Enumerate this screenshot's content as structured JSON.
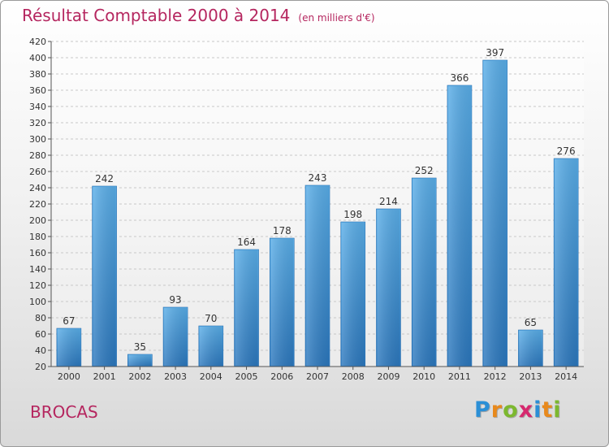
{
  "chart_data": {
    "type": "bar",
    "title": "Résultat Comptable 2000 à 2014",
    "subtitle": "(en milliers d'€)",
    "categories": [
      "2000",
      "2001",
      "2002",
      "2003",
      "2004",
      "2005",
      "2006",
      "2007",
      "2008",
      "2009",
      "2010",
      "2011",
      "2012",
      "2013",
      "2014"
    ],
    "values": [
      67,
      242,
      35,
      93,
      70,
      164,
      178,
      243,
      198,
      214,
      252,
      366,
      397,
      65,
      276
    ],
    "ylim": [
      20,
      420
    ],
    "yticks": [
      20,
      40,
      60,
      80,
      100,
      120,
      140,
      160,
      180,
      200,
      220,
      240,
      260,
      280,
      300,
      320,
      340,
      360,
      380,
      400,
      420
    ],
    "grid": true,
    "xlabel": "",
    "ylabel": "",
    "colors": {
      "bar": "#4e9fdf",
      "bar_dark": "#2f7fc4",
      "title": "#b5265f"
    }
  },
  "commune": "BROCAS",
  "logo": {
    "letters": [
      "P",
      "r",
      "o",
      "x",
      "i",
      "t",
      "i"
    ],
    "colors": [
      "#2b8fd6",
      "#e8891c",
      "#7cb82f",
      "#d6286e",
      "#2b8fd6",
      "#e8891c",
      "#7cb82f"
    ]
  }
}
